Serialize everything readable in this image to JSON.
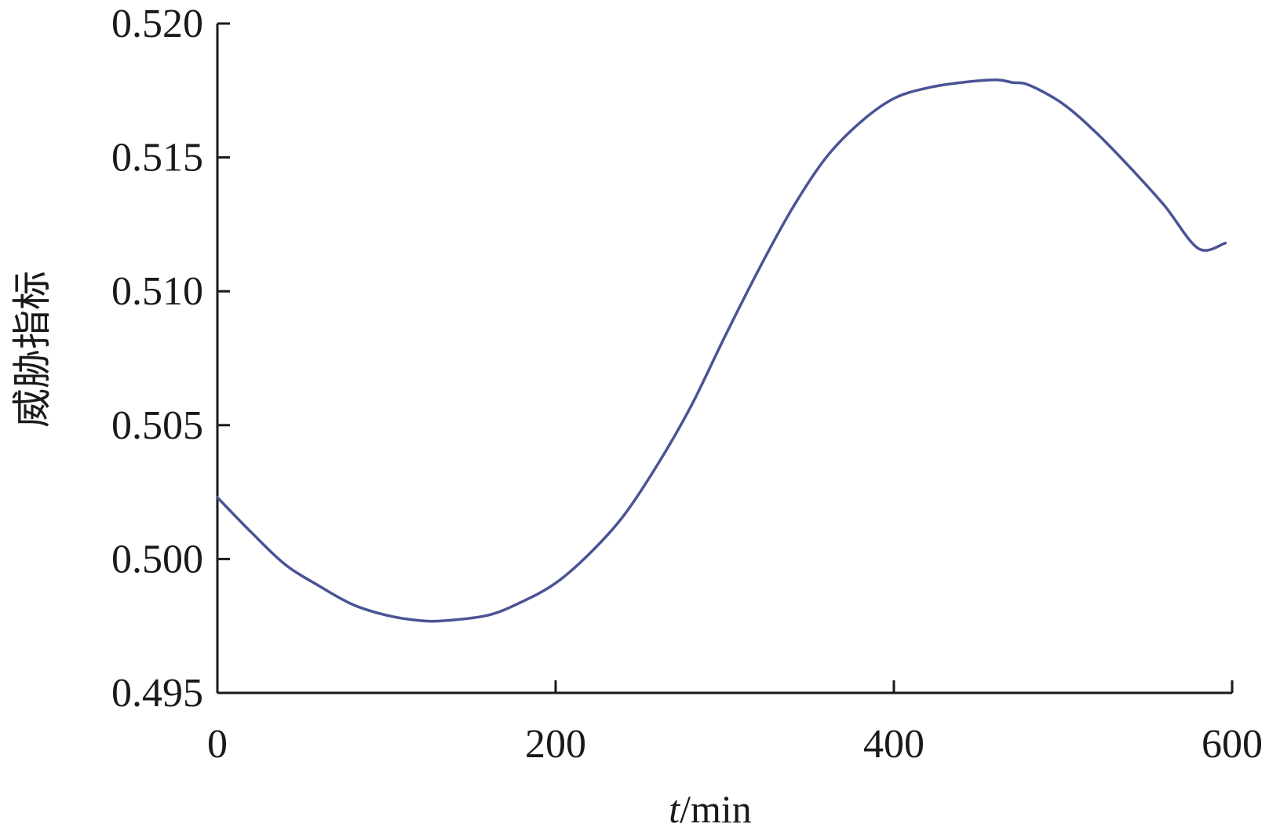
{
  "chart_data": {
    "type": "line",
    "title": "",
    "xlabel_var": "t",
    "xlabel_unit": "/min",
    "ylabel": "威胁指标",
    "xlim": [
      0,
      600
    ],
    "ylim": [
      0.495,
      0.52
    ],
    "x_ticks": [
      0,
      200,
      400,
      600
    ],
    "x_tick_labels": [
      "0",
      "200",
      "400",
      "600"
    ],
    "y_ticks": [
      0.495,
      0.5,
      0.505,
      0.51,
      0.515,
      0.52
    ],
    "y_tick_labels": [
      "0.495",
      "0.500",
      "0.505",
      "0.510",
      "0.515",
      "0.520"
    ],
    "grid": false,
    "legend": "none",
    "series": [
      {
        "color": "#4a5494",
        "x": [
          0,
          20,
          40,
          60,
          80,
          100,
          120,
          135,
          160,
          180,
          200,
          220,
          240,
          260,
          280,
          300,
          320,
          340,
          360,
          380,
          400,
          420,
          440,
          460,
          470,
          480,
          500,
          520,
          540,
          560,
          580,
          596
        ],
        "y": [
          0.5023,
          0.501,
          0.4998,
          0.499,
          0.4983,
          0.4979,
          0.4977,
          0.4977,
          0.4979,
          0.4984,
          0.4991,
          0.5002,
          0.5016,
          0.5035,
          0.5057,
          0.5083,
          0.5108,
          0.5131,
          0.515,
          0.5163,
          0.5172,
          0.5176,
          0.5178,
          0.5179,
          0.5178,
          0.5177,
          0.517,
          0.5159,
          0.5146,
          0.5132,
          0.5116,
          0.5118
        ]
      }
    ]
  }
}
